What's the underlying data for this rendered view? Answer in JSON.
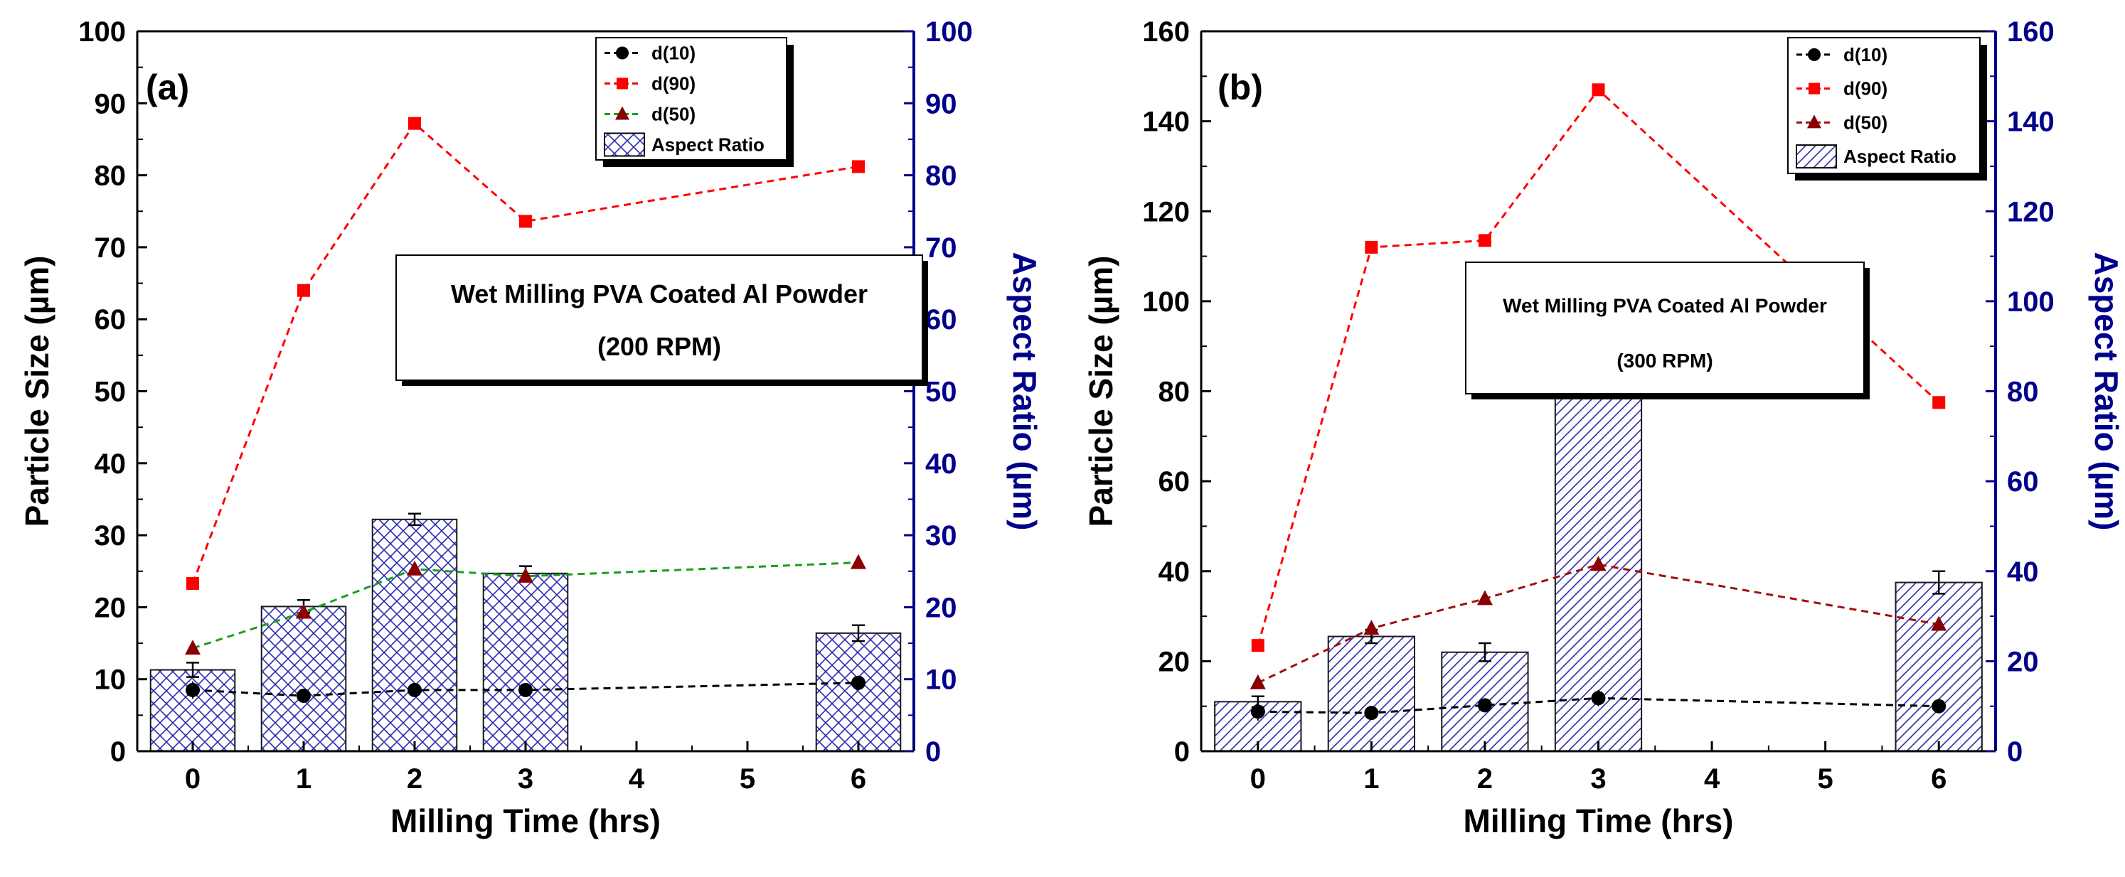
{
  "chart_data": [
    {
      "id": "a",
      "type": "bar+line",
      "panel_label": "(a)",
      "xlabel": "Milling Time (hrs)",
      "ylabel": "Particle Size (µm)",
      "y2label": "Aspect Ratio (µm)",
      "xlim": [
        -0.5,
        6.5
      ],
      "xticks": [
        "0",
        "1",
        "2",
        "3",
        "4",
        "5",
        "6"
      ],
      "ylim": [
        0,
        100
      ],
      "yticks": [
        "0",
        "10",
        "20",
        "30",
        "40",
        "50",
        "60",
        "70",
        "80",
        "90",
        "100"
      ],
      "y2lim": [
        0,
        100
      ],
      "y2ticks": [
        "0",
        "10",
        "20",
        "30",
        "40",
        "50",
        "60",
        "70",
        "80",
        "90",
        "100"
      ],
      "x": [
        0,
        1,
        2,
        3,
        6
      ],
      "series": [
        {
          "name": "d(10)",
          "kind": "line",
          "marker": "circle",
          "color": "#000000",
          "values": [
            8.5,
            7.7,
            8.5,
            8.5,
            9.5
          ],
          "errors": [
            1.2,
            0.7,
            0.8,
            0.7,
            1.0
          ]
        },
        {
          "name": "d(90)",
          "kind": "line",
          "marker": "square",
          "color": "#ff0000",
          "values": [
            23.3,
            64.0,
            87.2,
            73.6,
            81.2
          ]
        },
        {
          "name": "d(50)",
          "kind": "line",
          "marker": "triangle",
          "color": "#1a9e1a",
          "marker_color": "#8b0000",
          "values": [
            14.3,
            19.3,
            25.3,
            24.3,
            26.2
          ]
        },
        {
          "name": "Aspect Ratio",
          "kind": "bar",
          "hatch": "crosshatch",
          "color": "#2a2ab0",
          "values": [
            11.3,
            20.1,
            32.2,
            24.7,
            16.4
          ],
          "errors": [
            1.0,
            0.9,
            0.8,
            1.0,
            1.1
          ]
        }
      ],
      "annotation": [
        "Wet Milling PVA Coated Al Powder",
        "(200 RPM)"
      ],
      "legend": "top-right"
    },
    {
      "id": "b",
      "type": "bar+line",
      "panel_label": "(b)",
      "xlabel": "Milling Time (hrs)",
      "ylabel": "Particle Size (µm)",
      "y2label": "Aspect Ratio (µm)",
      "xlim": [
        -0.5,
        6.5
      ],
      "xticks": [
        "0",
        "1",
        "2",
        "3",
        "4",
        "5",
        "6"
      ],
      "ylim": [
        0,
        160
      ],
      "yticks": [
        "0",
        "20",
        "40",
        "60",
        "80",
        "100",
        "120",
        "140",
        "160"
      ],
      "y2lim": [
        0,
        160
      ],
      "y2ticks": [
        "0",
        "20",
        "40",
        "60",
        "80",
        "100",
        "120",
        "140",
        "160"
      ],
      "x": [
        0,
        1,
        2,
        3,
        6
      ],
      "series": [
        {
          "name": "d(10)",
          "kind": "line",
          "marker": "circle",
          "color": "#000000",
          "values": [
            8.8,
            8.5,
            10.2,
            11.8,
            10.0
          ],
          "errors": [
            2.0,
            1.5,
            1.5,
            1.8,
            1.5
          ]
        },
        {
          "name": "d(90)",
          "kind": "line",
          "marker": "square",
          "color": "#ff0000",
          "values": [
            23.5,
            112.0,
            113.5,
            147.0,
            77.5
          ]
        },
        {
          "name": "d(50)",
          "kind": "line",
          "marker": "triangle",
          "color": "#a01010",
          "marker_color": "#8b0000",
          "values": [
            15.2,
            27.3,
            33.9,
            41.5,
            28.2
          ]
        },
        {
          "name": "Aspect Ratio",
          "kind": "bar",
          "hatch": "diagonal",
          "color": "#2a2ab0",
          "values": [
            11.0,
            25.5,
            22.0,
            84.0,
            37.5
          ],
          "errors": [
            1.2,
            1.5,
            2.0,
            2.2,
            2.5
          ]
        }
      ],
      "annotation": [
        "Wet Milling PVA Coated Al Powder",
        "(300 RPM)"
      ],
      "legend": "top-right"
    }
  ]
}
